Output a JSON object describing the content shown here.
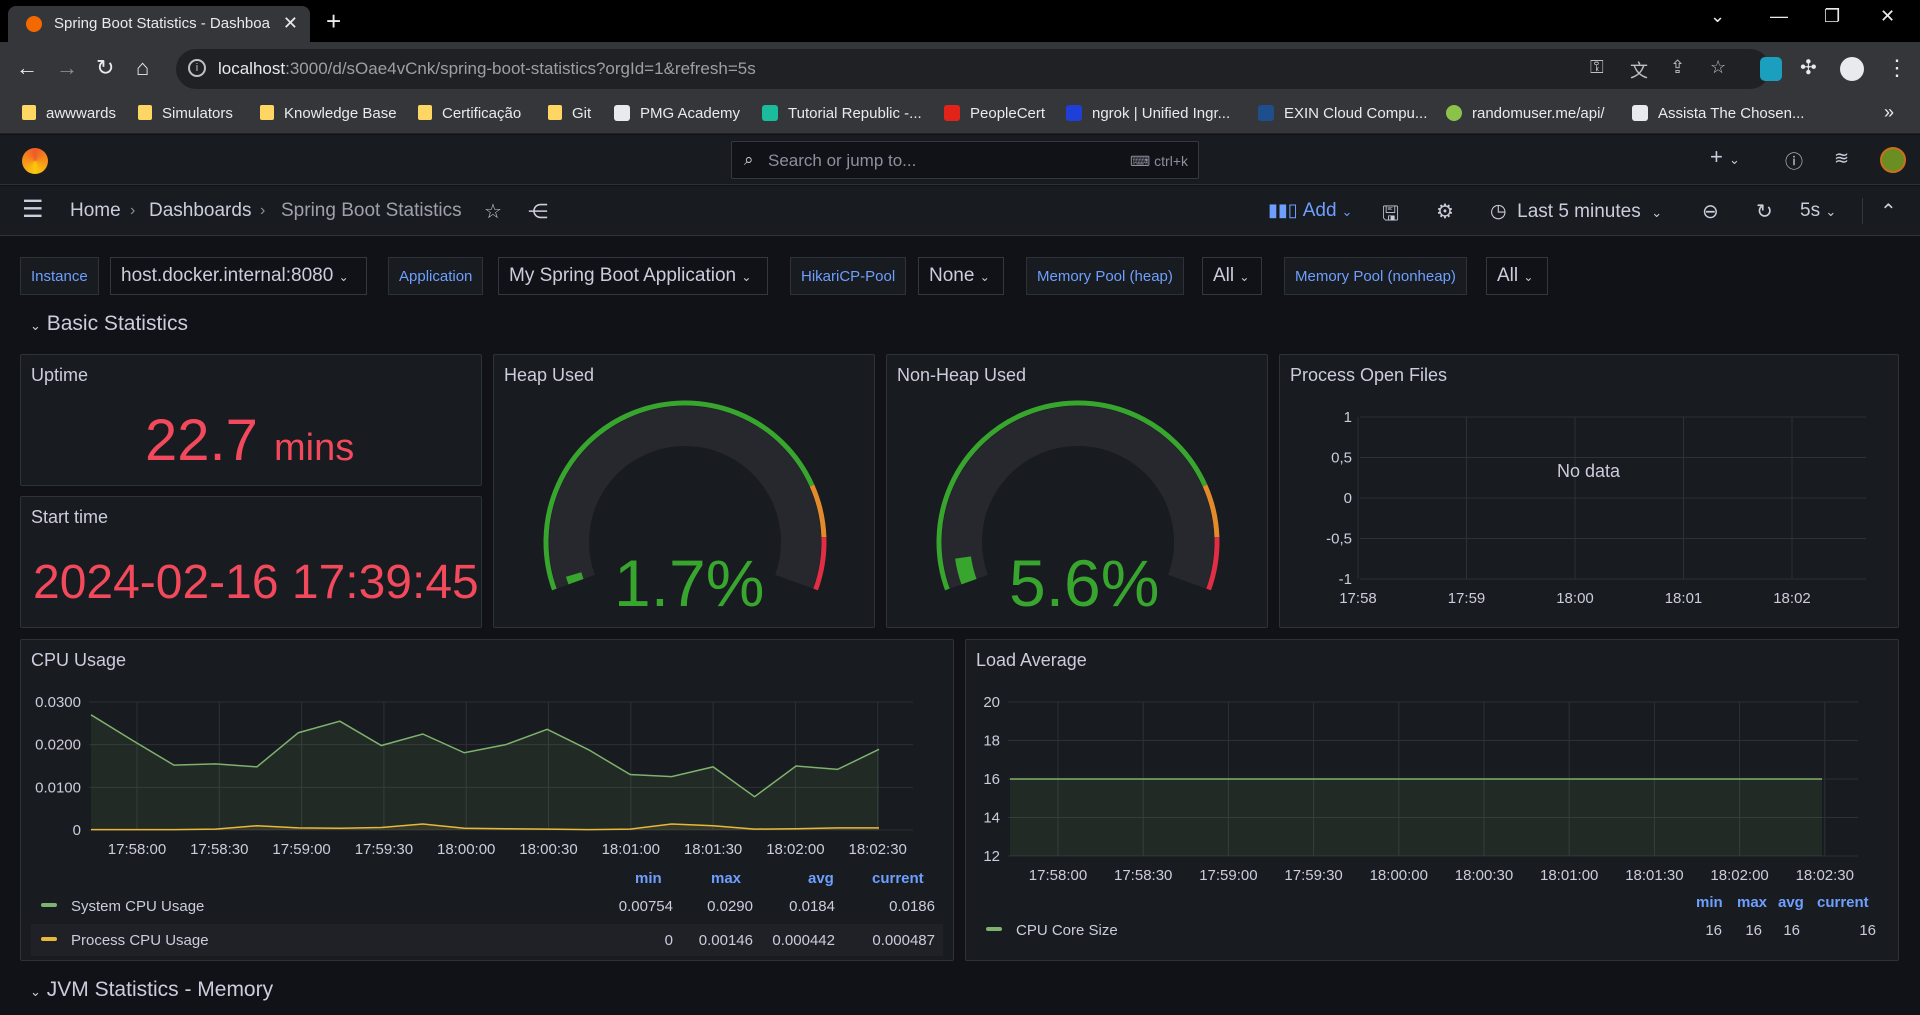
{
  "browser": {
    "tab_title": "Spring Boot Statistics - Dashboa",
    "url_host": "localhost",
    "url_rest": ":3000/d/sOae4vCnk/spring-boot-statistics?orgId=1&refresh=5s",
    "bookmarks": [
      "awwwards",
      "Simulators",
      "Knowledge Base",
      "Certificação",
      "Git",
      "PMG Academy",
      "Tutorial Republic -...",
      "PeopleCert",
      "ngrok | Unified Ingr...",
      "EXIN Cloud Compu...",
      "randomuser.me/api/",
      "Assista The Chosen..."
    ]
  },
  "grafana": {
    "search_placeholder": "Search or jump to...",
    "search_shortcut": "ctrl+k",
    "breadcrumb": [
      "Home",
      "Dashboards",
      "Spring Boot Statistics"
    ],
    "add_label": "Add",
    "time_range": "Last 5 minutes",
    "refresh": "5s"
  },
  "variables": [
    {
      "label": "Instance",
      "value": "host.docker.internal:8080"
    },
    {
      "label": "Application",
      "value": "My Spring Boot Application"
    },
    {
      "label": "HikariCP-Pool",
      "value": "None"
    },
    {
      "label": "Memory Pool (heap)",
      "value": "All"
    },
    {
      "label": "Memory Pool (nonheap)",
      "value": "All"
    }
  ],
  "rows": {
    "basic": "Basic Statistics",
    "jvm": "JVM Statistics - Memory"
  },
  "panels": {
    "uptime": {
      "title": "Uptime",
      "value": "22.7",
      "unit": "mins"
    },
    "start_time": {
      "title": "Start time",
      "value": "2024-02-16 17:39:45"
    },
    "heap": {
      "title": "Heap Used",
      "value": "1.7%",
      "percent": 1.7
    },
    "nonheap": {
      "title": "Non-Heap Used",
      "value": "5.6%",
      "percent": 5.6
    },
    "open_files": {
      "title": "Process Open Files",
      "no_data": "No data"
    },
    "cpu": {
      "title": "CPU Usage",
      "legend_headers": [
        "min",
        "max",
        "avg",
        "current"
      ],
      "legend": [
        {
          "name": "System CPU Usage",
          "color": "#7eb26d",
          "min": "0.00754",
          "max": "0.0290",
          "avg": "0.0184",
          "current": "0.0186"
        },
        {
          "name": "Process CPU Usage",
          "color": "#eab839",
          "min": "0",
          "max": "0.00146",
          "avg": "0.000442",
          "current": "0.000487"
        }
      ]
    },
    "load": {
      "title": "Load Average",
      "legend_headers": [
        "min",
        "max",
        "avg",
        "current"
      ],
      "legend": [
        {
          "name": "CPU Core Size",
          "color": "#7eb26d",
          "min": "16",
          "max": "16",
          "avg": "16",
          "current": "16"
        }
      ]
    }
  },
  "chart_data": [
    {
      "type": "line",
      "title": "Process Open Files",
      "x_ticks": [
        "17:58",
        "17:59",
        "18:00",
        "18:01",
        "18:02"
      ],
      "y_ticks": [
        "1",
        "0,5",
        "0",
        "-0,5",
        "-1"
      ],
      "ylim": [
        -1,
        1
      ],
      "series": []
    },
    {
      "type": "area",
      "title": "CPU Usage",
      "x_ticks": [
        "17:58:00",
        "17:58:30",
        "17:59:00",
        "17:59:30",
        "18:00:00",
        "18:00:30",
        "18:01:00",
        "18:01:30",
        "18:02:00",
        "18:02:30"
      ],
      "y_ticks": [
        "0.0300",
        "0.0200",
        "0.0100",
        "0"
      ],
      "ylim": [
        0,
        0.03
      ],
      "x_seconds": [
        0,
        15,
        30,
        45,
        60,
        75,
        90,
        105,
        120,
        135,
        150,
        165,
        180,
        195,
        210,
        225,
        240,
        255,
        270,
        285
      ],
      "series": [
        {
          "name": "System CPU Usage",
          "color": "#7eb26d",
          "values": [
            0.027,
            0.021,
            0.0152,
            0.0155,
            0.0148,
            0.0228,
            0.0255,
            0.0198,
            0.0225,
            0.0181,
            0.02,
            0.0236,
            0.0188,
            0.013,
            0.0125,
            0.0148,
            0.0078,
            0.015,
            0.0142,
            0.0189
          ]
        },
        {
          "name": "Process CPU Usage",
          "color": "#eab839",
          "values": [
            0.0001,
            0.0001,
            0.0001,
            0.0002,
            0.001,
            0.0005,
            0.0004,
            0.0006,
            0.0014,
            0.0004,
            0.0003,
            0.0002,
            0.0001,
            0.0002,
            0.0014,
            0.001,
            0.0002,
            0.0003,
            0.0005,
            0.0005
          ]
        }
      ]
    },
    {
      "type": "area",
      "title": "Load Average",
      "x_ticks": [
        "17:58:00",
        "17:58:30",
        "17:59:00",
        "17:59:30",
        "18:00:00",
        "18:00:30",
        "18:01:00",
        "18:01:30",
        "18:02:00",
        "18:02:30"
      ],
      "y_ticks": [
        "20",
        "18",
        "16",
        "14",
        "12"
      ],
      "ylim": [
        12,
        20
      ],
      "series": [
        {
          "name": "CPU Core Size",
          "color": "#7eb26d",
          "values": [
            16,
            16
          ]
        }
      ]
    }
  ]
}
